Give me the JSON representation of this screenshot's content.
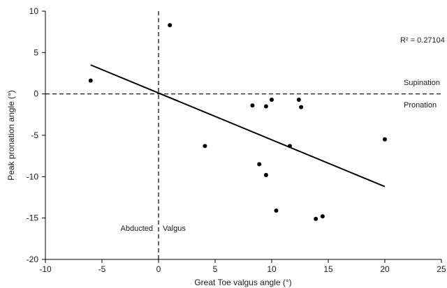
{
  "chart_data": {
    "type": "scatter",
    "xlabel": "Great Toe valgus angle (°)",
    "ylabel": "Peak  pronation angle (°)",
    "xlim": [
      -10,
      25
    ],
    "ylim": [
      -20,
      10
    ],
    "xticks": [
      -10,
      -5,
      0,
      5,
      10,
      15,
      20,
      25
    ],
    "yticks": [
      -20,
      -15,
      -10,
      -5,
      0,
      5,
      10
    ],
    "grid": false,
    "points": [
      {
        "x": -6.0,
        "y": 1.6
      },
      {
        "x": 1.0,
        "y": 8.3
      },
      {
        "x": 4.1,
        "y": -6.3
      },
      {
        "x": 8.3,
        "y": -1.4
      },
      {
        "x": 8.9,
        "y": -8.5
      },
      {
        "x": 9.5,
        "y": -1.5
      },
      {
        "x": 9.5,
        "y": -9.8
      },
      {
        "x": 10.0,
        "y": -0.7
      },
      {
        "x": 10.4,
        "y": -14.1
      },
      {
        "x": 11.6,
        "y": -6.3
      },
      {
        "x": 12.4,
        "y": -0.7
      },
      {
        "x": 12.6,
        "y": -1.6
      },
      {
        "x": 13.9,
        "y": -15.1
      },
      {
        "x": 14.5,
        "y": -14.8
      },
      {
        "x": 20.0,
        "y": -5.5
      }
    ],
    "trendline": {
      "x": [
        -6,
        20
      ],
      "y": [
        3.5,
        -11.2
      ]
    },
    "reference_lines": {
      "vertical_x": 0,
      "horizontal_y": 0,
      "style": "dashed"
    },
    "annotations": {
      "r_squared": "R² = 0.27104",
      "supination": "Supination",
      "pronation": "Pronation",
      "abducted": "Abducted",
      "valgus": "Valgus"
    },
    "colors": {
      "points": "#000000",
      "trendline": "#000000",
      "reference": "#000000"
    }
  }
}
